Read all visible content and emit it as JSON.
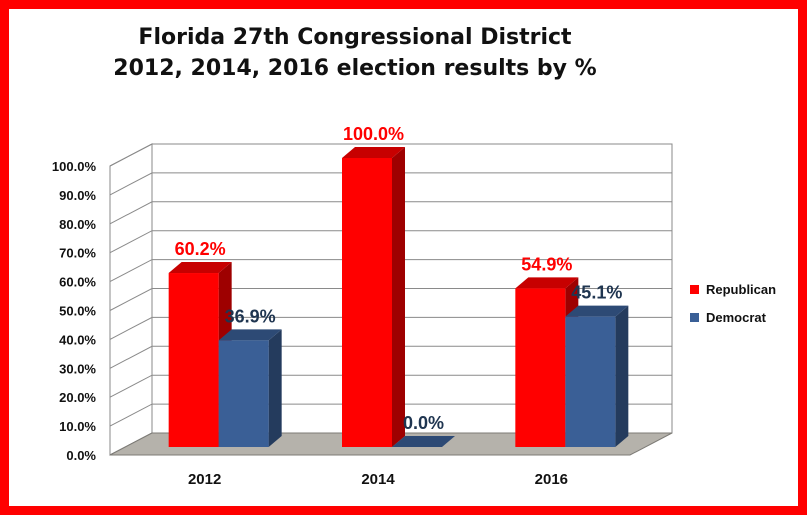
{
  "chart_data": {
    "type": "bar",
    "title_lines": [
      "Florida 27th Congressional District",
      "2012, 2014, 2016 election results by %"
    ],
    "categories": [
      "2012",
      "2014",
      "2016"
    ],
    "ylim": [
      0,
      100
    ],
    "y_ticks": [
      "0.0%",
      "10.0%",
      "20.0%",
      "30.0%",
      "40.0%",
      "50.0%",
      "60.0%",
      "70.0%",
      "80.0%",
      "90.0%",
      "100.0%"
    ],
    "grid": true,
    "legend_position": "right",
    "series": [
      {
        "name": "Republican",
        "values": [
          60.2,
          100.0,
          54.9
        ],
        "labels": [
          "60.2%",
          "100.0%",
          "54.9%"
        ],
        "color": "#ff0000",
        "label_color": "#ff0000"
      },
      {
        "name": "Democrat",
        "values": [
          36.9,
          0.0,
          45.1
        ],
        "labels": [
          "36.9%",
          "0.0%",
          "45.1%"
        ],
        "color": "#3a5f96",
        "label_color": "#1f3550"
      }
    ]
  },
  "colors": {
    "frame": "#ff0000",
    "floor": "#b5b2ab",
    "wall": "#ffffff"
  }
}
